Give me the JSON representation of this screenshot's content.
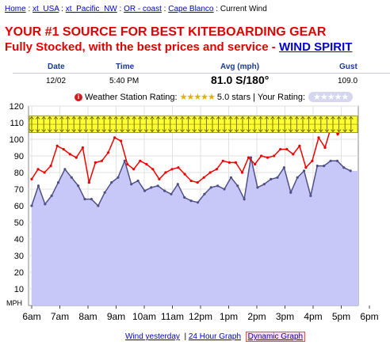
{
  "breadcrumb": {
    "items": [
      "Home",
      "xt_USA",
      "xt_Pacific_NW",
      "OR - coast",
      "Cape Blanco"
    ],
    "current": "Current Wind"
  },
  "promo": {
    "headline": "YOUR #1 SOURCE FOR BEST KITEBOARDING GEAR",
    "subline": "Fully Stocked, with the best prices and service - ",
    "link": "WIND SPIRIT"
  },
  "observation": {
    "headers": {
      "date": "Date",
      "time": "Time",
      "avg": "Avg (mph)",
      "gust": "Gust"
    },
    "date": "12/02",
    "time": "5:40 PM",
    "avg": "81.0 S/180°",
    "gust": "109.0"
  },
  "rating": {
    "label": "Weather Station Rating:",
    "stars_text": "5.0 stars",
    "your_rating": "| Your Rating:",
    "stars": 5
  },
  "chart_data": {
    "type": "line",
    "y_unit": "MPH",
    "ylim": [
      0,
      120
    ],
    "y_ticks": [
      10,
      20,
      30,
      40,
      50,
      60,
      70,
      80,
      90,
      100,
      110,
      120
    ],
    "x_ticks": [
      "6am",
      "7am",
      "8am",
      "9am",
      "10am",
      "11am",
      "12pm",
      "1pm",
      "2pm",
      "3pm",
      "4pm",
      "5pm",
      "6pm"
    ],
    "x_range_hours": [
      6,
      17.33
    ],
    "grid": true,
    "direction_band": {
      "min": 104,
      "max": 114,
      "direction": "S"
    },
    "series": [
      {
        "role": "gust",
        "color": "#ee0000",
        "values": [
          76,
          82,
          80,
          84,
          96,
          94,
          91,
          89,
          95,
          74,
          86,
          87,
          92,
          101,
          99,
          85,
          82,
          87,
          85,
          82,
          76,
          80,
          82,
          83,
          79,
          75,
          74,
          77,
          80,
          82,
          87,
          86,
          86,
          80,
          89,
          85,
          90,
          89,
          90,
          94,
          94,
          91,
          96,
          83,
          87,
          101,
          95,
          108,
          103,
          107,
          106
        ]
      },
      {
        "role": "average",
        "color": "#505088",
        "fill": "#c8c8f8",
        "values": [
          60,
          72,
          61,
          66,
          74,
          82,
          77,
          72,
          64,
          64,
          60,
          68,
          74,
          77,
          87,
          73,
          75,
          69,
          71,
          72,
          69,
          67,
          73,
          65,
          63,
          62,
          67,
          71,
          72,
          70,
          77,
          72,
          64,
          89,
          71,
          73,
          76,
          77,
          83,
          68,
          77,
          81,
          66,
          84,
          84,
          87,
          87,
          83,
          81
        ]
      }
    ]
  },
  "footer": {
    "wind_yesterday": "Wind yesterday",
    "separator": "|",
    "hour24": "24 Hour Graph",
    "dynamic": "Dynamic Graph"
  }
}
